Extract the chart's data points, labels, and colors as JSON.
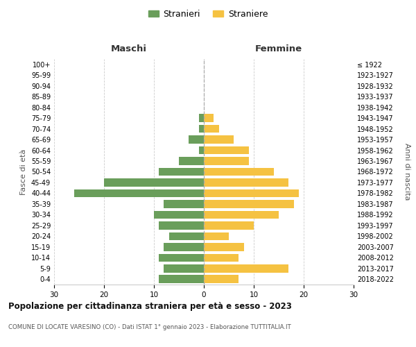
{
  "age_groups": [
    "100+",
    "95-99",
    "90-94",
    "85-89",
    "80-84",
    "75-79",
    "70-74",
    "65-69",
    "60-64",
    "55-59",
    "50-54",
    "45-49",
    "40-44",
    "35-39",
    "30-34",
    "25-29",
    "20-24",
    "15-19",
    "10-14",
    "5-9",
    "0-4"
  ],
  "birth_years": [
    "≤ 1922",
    "1923-1927",
    "1928-1932",
    "1933-1937",
    "1938-1942",
    "1943-1947",
    "1948-1952",
    "1953-1957",
    "1958-1962",
    "1963-1967",
    "1968-1972",
    "1973-1977",
    "1978-1982",
    "1983-1987",
    "1988-1992",
    "1993-1997",
    "1998-2002",
    "2003-2007",
    "2008-2012",
    "2013-2017",
    "2018-2022"
  ],
  "males": [
    0,
    0,
    0,
    0,
    0,
    1,
    1,
    3,
    1,
    5,
    9,
    20,
    26,
    8,
    10,
    9,
    7,
    8,
    9,
    8,
    9
  ],
  "females": [
    0,
    0,
    0,
    0,
    0,
    2,
    3,
    6,
    9,
    9,
    14,
    17,
    19,
    18,
    15,
    10,
    5,
    8,
    7,
    17,
    7
  ],
  "male_color": "#6a9e5b",
  "female_color": "#f5c242",
  "bar_height": 0.75,
  "xlim": 30,
  "title": "Popolazione per cittadinanza straniera per età e sesso - 2023",
  "subtitle": "COMUNE DI LOCATE VARESINO (CO) - Dati ISTAT 1° gennaio 2023 - Elaborazione TUTTITALIA.IT",
  "legend_stranieri": "Stranieri",
  "legend_straniere": "Straniere",
  "xlabel_left": "Maschi",
  "xlabel_right": "Femmine",
  "ylabel_left": "Fasce di età",
  "ylabel_right": "Anni di nascita",
  "background_color": "#ffffff",
  "grid_color": "#cccccc"
}
